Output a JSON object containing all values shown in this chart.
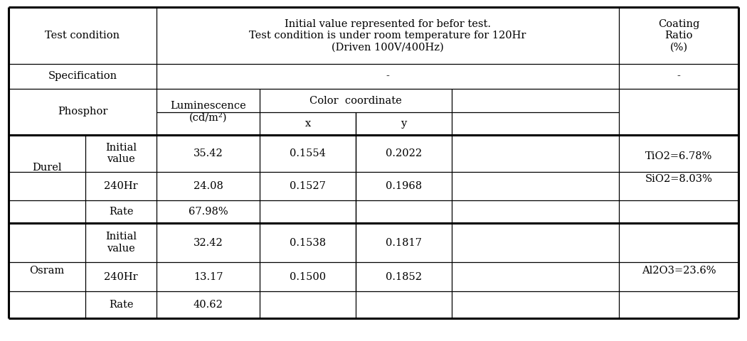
{
  "header_col1": "Test condition",
  "header_col2": "Initial value represented for befor test.\nTest condition is under room temperature for 120Hr\n(Driven 100V/400Hz)",
  "header_col3": "Coating\nRatio\n(%)",
  "spec_label": "Specification",
  "spec_mid": "-",
  "spec_right": "-",
  "phosphor_label": "Phosphor",
  "lum_label": "Luminescence\n(cd/m²)",
  "color_coord_label": "Color  coordinate",
  "x_label": "x",
  "y_label": "y",
  "durel_coating": "TiO2=6.78%\n\nSiO2=8.03%",
  "osram_coating": "Al2O3=23.6%",
  "bg_color": "#ffffff",
  "border_color": "#000000",
  "text_color": "#000000",
  "fs": 10.5,
  "fs_header": 10.5
}
